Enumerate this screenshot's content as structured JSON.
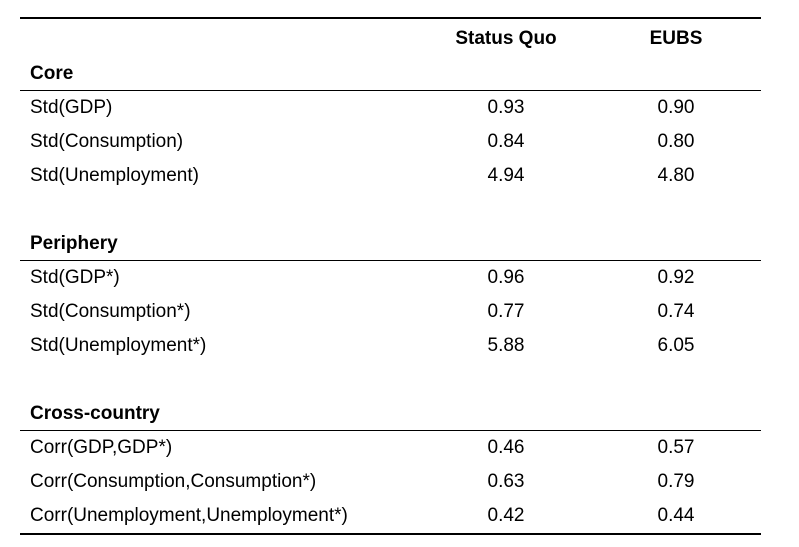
{
  "columns": {
    "status_quo": "Status Quo",
    "eubs": "EUBS"
  },
  "sections": [
    {
      "title": "Core",
      "rows": [
        {
          "label": "Std(GDP)",
          "status_quo": "0.93",
          "eubs": "0.90"
        },
        {
          "label": "Std(Consumption)",
          "status_quo": "0.84",
          "eubs": "0.80"
        },
        {
          "label": "Std(Unemployment)",
          "status_quo": "4.94",
          "eubs": "4.80"
        }
      ]
    },
    {
      "title": "Periphery",
      "rows": [
        {
          "label": "Std(GDP*)",
          "status_quo": "0.96",
          "eubs": "0.92"
        },
        {
          "label": "Std(Consumption*)",
          "status_quo": "0.77",
          "eubs": "0.74"
        },
        {
          "label": "Std(Unemployment*)",
          "status_quo": "5.88",
          "eubs": "6.05"
        }
      ]
    },
    {
      "title": "Cross-country",
      "rows": [
        {
          "label": "Corr(GDP,GDP*)",
          "status_quo": "0.46",
          "eubs": "0.57"
        },
        {
          "label": "Corr(Consumption,Consumption*)",
          "status_quo": "0.63",
          "eubs": "0.79"
        },
        {
          "label": "Corr(Unemployment,Unemployment*)",
          "status_quo": "0.42",
          "eubs": "0.44"
        }
      ]
    }
  ]
}
